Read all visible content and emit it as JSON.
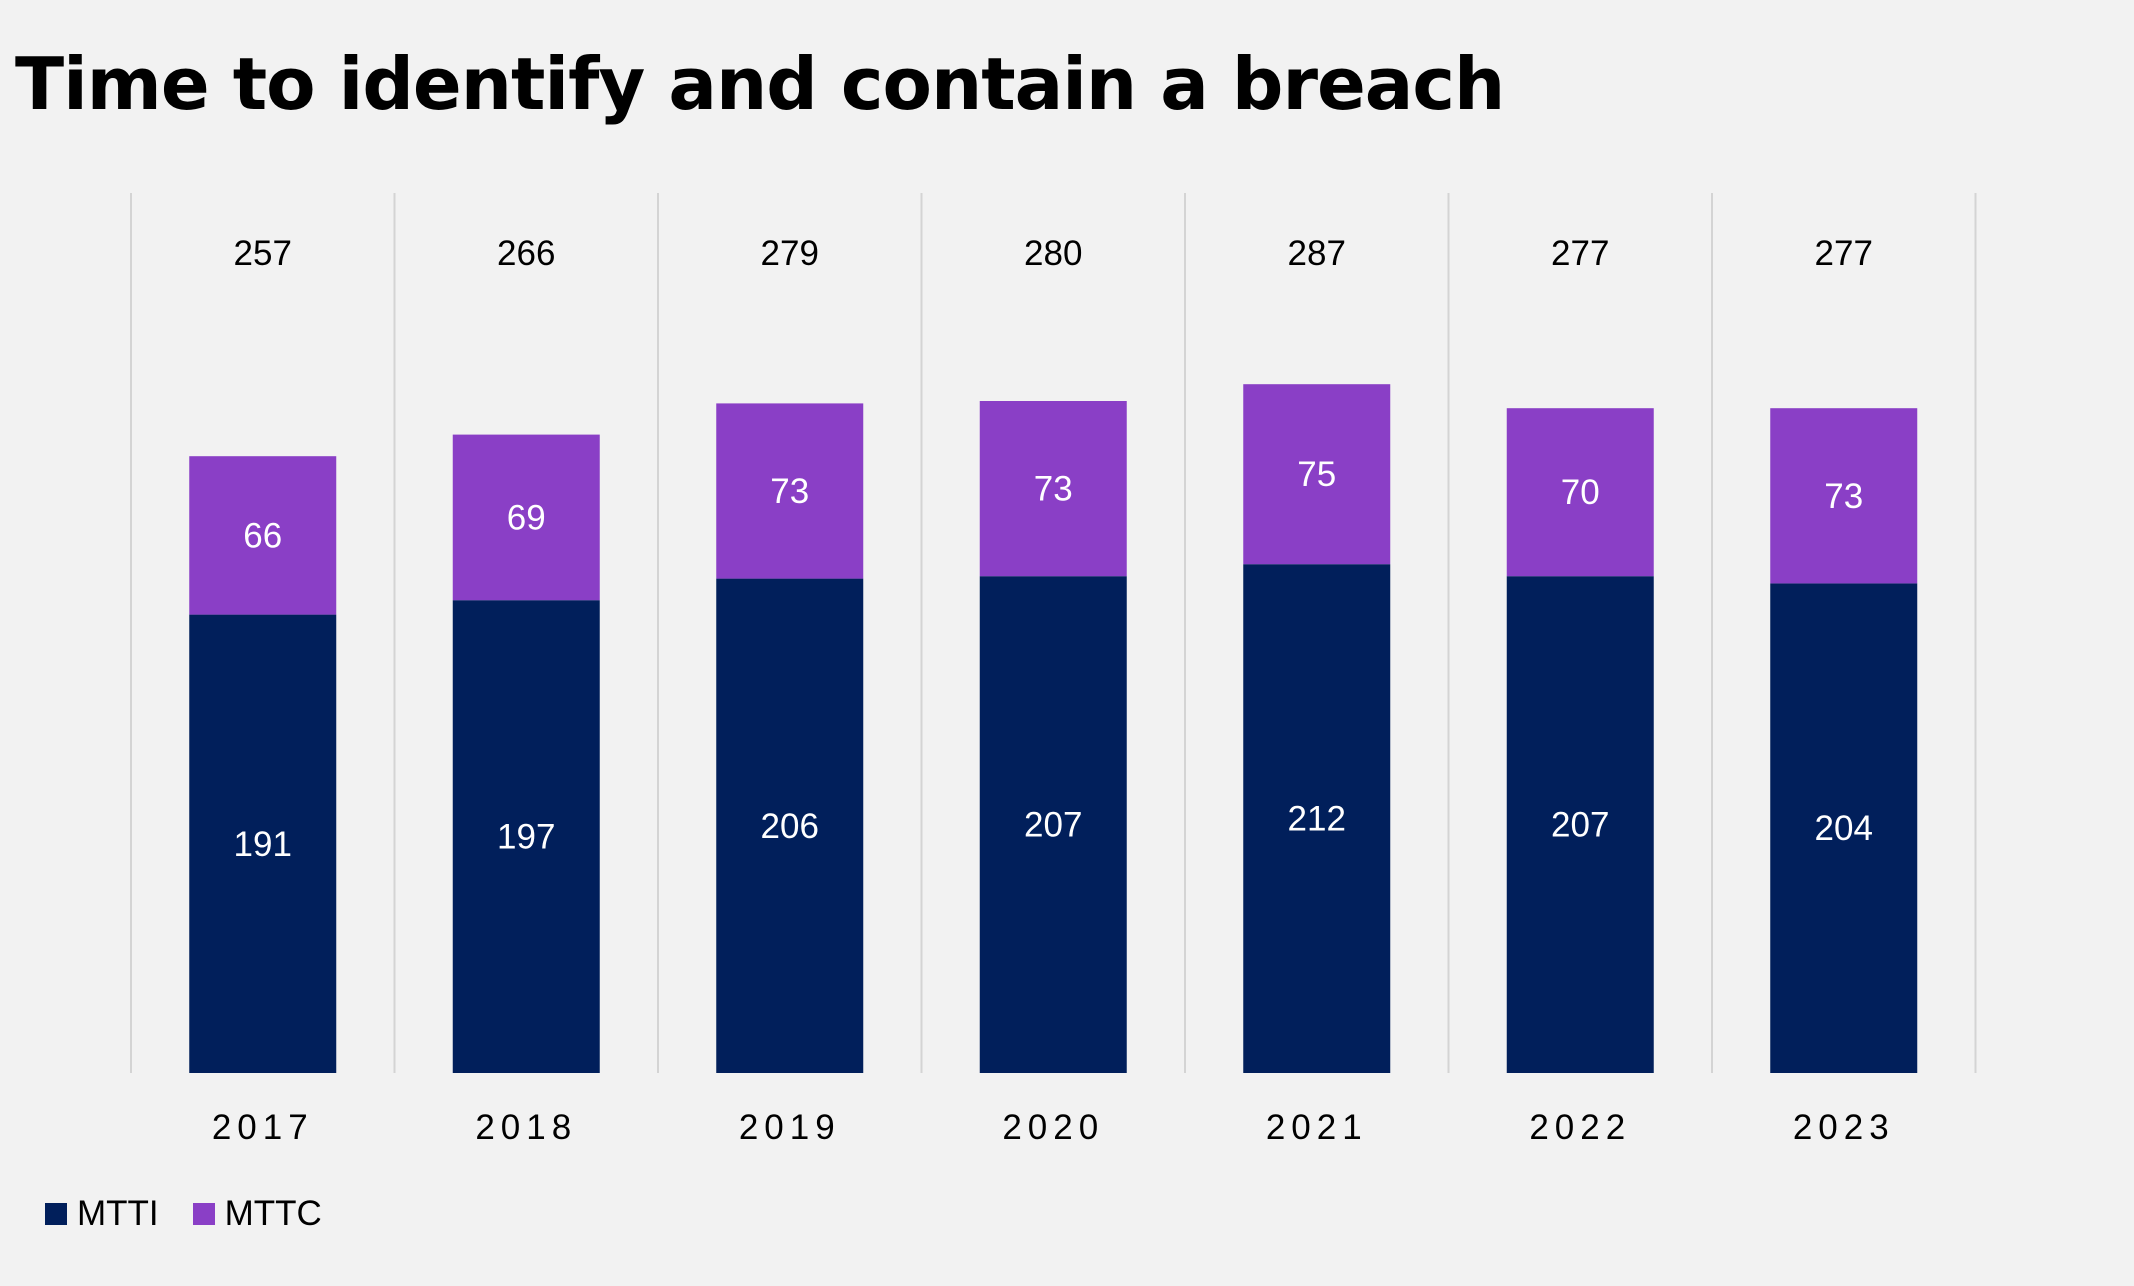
{
  "title": "Time to identify and contain a breach",
  "colors": {
    "mtti": "#011f5b",
    "mttc": "#8a3fc6",
    "background": "#f2f2f2",
    "gridline": "#d4d4d4"
  },
  "legend": [
    {
      "label": "MTTI",
      "color": "#011f5b"
    },
    {
      "label": "MTTC",
      "color": "#8a3fc6"
    }
  ],
  "chart_data": {
    "type": "bar",
    "stacked": true,
    "title": "Time to identify and contain a breach",
    "categories": [
      "2017",
      "2018",
      "2019",
      "2020",
      "2021",
      "2022",
      "2023"
    ],
    "series": [
      {
        "name": "MTTI",
        "values": [
          191,
          197,
          206,
          207,
          212,
          207,
          204
        ]
      },
      {
        "name": "MTTC",
        "values": [
          66,
          69,
          73,
          73,
          75,
          70,
          73
        ]
      }
    ],
    "totals": [
      257,
      266,
      279,
      280,
      287,
      277,
      277
    ],
    "legend_position": "bottom-left",
    "grid": "vertical category separators"
  }
}
